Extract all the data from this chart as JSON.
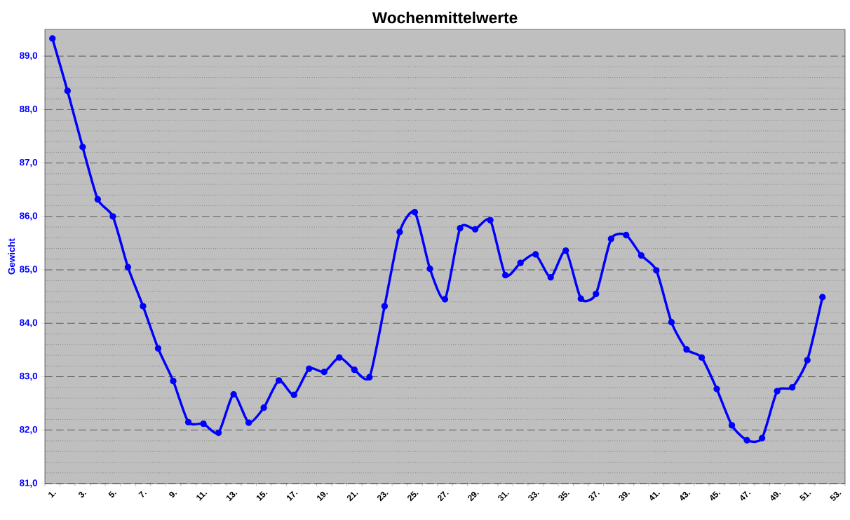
{
  "chart_data": {
    "type": "line",
    "title": "Wochenmittelwerte",
    "ylabel": "Gewicht",
    "categories": [
      "1.",
      null,
      "3.",
      null,
      "5.",
      null,
      "7.",
      null,
      "9.",
      null,
      "11.",
      null,
      "13.",
      null,
      "15.",
      null,
      "17.",
      null,
      "19.",
      null,
      "21.",
      null,
      "23.",
      null,
      "25.",
      null,
      "27.",
      null,
      "29.",
      null,
      "31.",
      null,
      "33.",
      null,
      "35.",
      null,
      "37.",
      null,
      "39.",
      null,
      "41.",
      null,
      "43.",
      null,
      "45.",
      null,
      "47.",
      null,
      "49.",
      null,
      "51.",
      null,
      "53."
    ],
    "series": [
      {
        "color": "#0000ff",
        "values": [
          89.33,
          88.35,
          87.3,
          86.32,
          86.0,
          85.05,
          84.32,
          83.53,
          82.92,
          82.15,
          82.12,
          81.95,
          82.67,
          82.14,
          82.42,
          82.93,
          82.66,
          83.15,
          83.09,
          83.36,
          83.13,
          82.99,
          84.32,
          85.71,
          86.08,
          85.02,
          84.45,
          85.78,
          85.76,
          85.93,
          84.9,
          85.13,
          85.29,
          84.86,
          85.36,
          84.46,
          84.55,
          85.58,
          85.65,
          85.27,
          84.99,
          84.02,
          83.51,
          83.36,
          82.77,
          82.09,
          81.81,
          81.85,
          82.73,
          82.8,
          83.31,
          84.49,
          null
        ]
      }
    ],
    "ylim": [
      81,
      89.5
    ],
    "yticks": [
      {
        "value": 81,
        "label": "81,0"
      },
      {
        "value": 82,
        "label": "82,0"
      },
      {
        "value": 83,
        "label": "83,0"
      },
      {
        "value": 84,
        "label": "84,0"
      },
      {
        "value": 85,
        "label": "85,0"
      },
      {
        "value": 86,
        "label": "86,0"
      },
      {
        "value": 87,
        "label": "87,0"
      },
      {
        "value": 88,
        "label": "88,0"
      },
      {
        "value": 89,
        "label": "89,0"
      }
    ],
    "grid": "y",
    "marker": "circle",
    "line_style": "solid"
  }
}
